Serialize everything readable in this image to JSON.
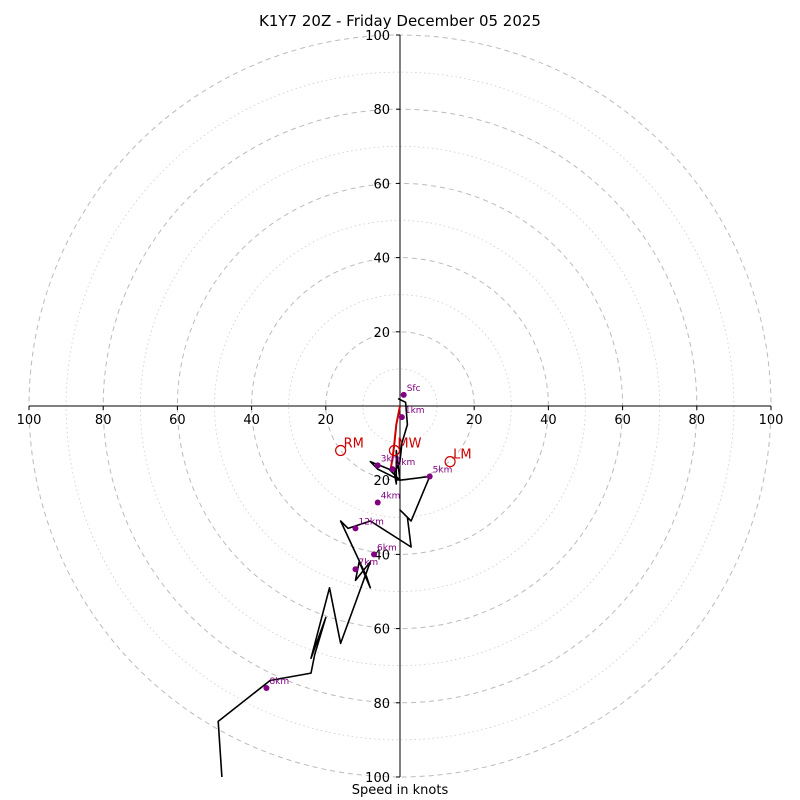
{
  "chart_data": {
    "type": "hodograph",
    "title": "K1Y7 20Z - Friday December 05 2025",
    "xlabel": "Speed in knots",
    "rlim": [
      0,
      100
    ],
    "ring_labels": [
      "20",
      "40",
      "60",
      "80",
      "100"
    ],
    "axis_ticks": {
      "left": [
        "100",
        "80",
        "60",
        "40",
        "20"
      ],
      "right": [
        "20",
        "40",
        "60",
        "80",
        "100"
      ],
      "top": [
        "20",
        "40",
        "60",
        "80",
        "100"
      ],
      "bottom": [
        "20",
        "40",
        "60",
        "80",
        "100"
      ]
    },
    "colors": {
      "profile": "#000000",
      "lowlevel": "#cc0000",
      "markers": "#800080",
      "motion": "#cc0000",
      "grid": "#bbbbbb"
    },
    "hodograph": {
      "u": [
        -0.5,
        1.5,
        2,
        0.5,
        0,
        -1.5,
        -1,
        -1,
        0,
        -3,
        -8,
        -6,
        0,
        8,
        3,
        0,
        2,
        3,
        -8,
        -14,
        -16,
        -9,
        -8,
        -11,
        -12,
        -8,
        -12,
        -16,
        -19,
        -24,
        -20,
        -23,
        -24,
        -35,
        -49,
        -48
      ],
      "y": [
        2,
        1,
        -5,
        -10,
        -15,
        -18,
        -21,
        -12,
        -20,
        -17,
        -15,
        -17,
        -20,
        -19,
        -31,
        -28,
        -30,
        -38,
        -31,
        -33,
        -31,
        -46,
        -49,
        -42,
        -47,
        -42,
        -53,
        -64,
        -49,
        -68,
        -57,
        -67,
        -72,
        -74,
        -85,
        -100
      ]
    },
    "lowlevel_u": [
      0,
      -1,
      -1.5,
      -2,
      -2.5
    ],
    "lowlevel_y": [
      0,
      -5,
      -10,
      -14,
      -17
    ],
    "levels": [
      {
        "label": "Sfc",
        "u": 1,
        "y": 3
      },
      {
        "label": "1km",
        "u": 0.5,
        "y": -3
      },
      {
        "label": "3km",
        "u": -6,
        "y": -16
      },
      {
        "label": "2km",
        "u": -2,
        "y": -17
      },
      {
        "label": "5km",
        "u": 8,
        "y": -19
      },
      {
        "label": "4km",
        "u": -6,
        "y": -26
      },
      {
        "label": "12km",
        "u": -12,
        "y": -33
      },
      {
        "label": "6km",
        "u": -7,
        "y": -40
      },
      {
        "label": "7km",
        "u": -12,
        "y": -44
      },
      {
        "label": "8km",
        "u": -36,
        "y": -76
      }
    ],
    "storm_motion": [
      {
        "label": "RM",
        "u": -16,
        "y": -12
      },
      {
        "label": "LM",
        "u": 13.5,
        "y": -15
      },
      {
        "label": "MW",
        "u": -1.5,
        "y": -12
      }
    ]
  }
}
